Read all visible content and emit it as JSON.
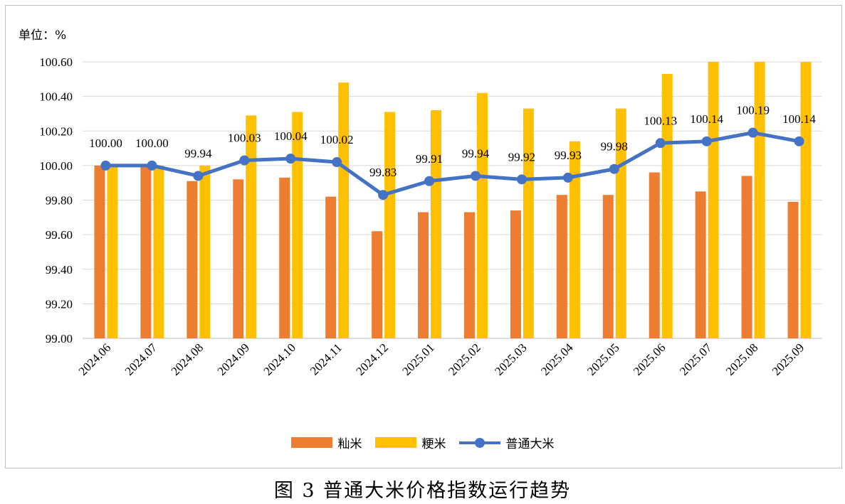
{
  "unit_label": "单位：%",
  "caption": "图 3  普通大米价格指数运行趋势",
  "colors": {
    "indica": "#ed7d31",
    "japonica": "#ffc000",
    "line": "#4472c4",
    "grid": "#d9d9d9"
  },
  "chart_data": {
    "type": "bar+line",
    "categories": [
      "2024.06",
      "2024.07",
      "2024.08",
      "2024.09",
      "2024.10",
      "2024.11",
      "2024.12",
      "2025.01",
      "2025.02",
      "2025.03",
      "2025.04",
      "2025.05",
      "2025.06",
      "2025.07",
      "2025.08",
      "2025.09"
    ],
    "ylim": [
      99.0,
      100.6
    ],
    "yticks": [
      "99.00",
      "99.20",
      "99.40",
      "99.60",
      "99.80",
      "100.00",
      "100.20",
      "100.40",
      "100.60"
    ],
    "grid": true,
    "legend_position": "bottom",
    "series": [
      {
        "name": "籼米",
        "type": "bar",
        "values": [
          100.0,
          100.0,
          99.91,
          99.92,
          99.93,
          99.82,
          99.62,
          99.73,
          99.73,
          99.74,
          99.83,
          99.83,
          99.96,
          99.85,
          99.94,
          99.79
        ]
      },
      {
        "name": "粳米",
        "type": "bar",
        "values": [
          100.0,
          100.0,
          100.0,
          100.29,
          100.31,
          100.48,
          100.31,
          100.32,
          100.42,
          100.33,
          100.14,
          100.33,
          100.53,
          100.6,
          100.6,
          100.6
        ]
      },
      {
        "name": "普通大米",
        "type": "line",
        "values": [
          100.0,
          100.0,
          99.94,
          100.03,
          100.04,
          100.02,
          99.83,
          99.91,
          99.94,
          99.92,
          99.93,
          99.98,
          100.13,
          100.14,
          100.19,
          100.14
        ],
        "labels": [
          "100.00",
          "100.00",
          "99.94",
          "100.03",
          "100.04",
          "100.02",
          "99.83",
          "99.91",
          "99.94",
          "99.92",
          "99.93",
          "99.98",
          "100.13",
          "100.14",
          "100.19",
          "100.14"
        ]
      }
    ]
  }
}
